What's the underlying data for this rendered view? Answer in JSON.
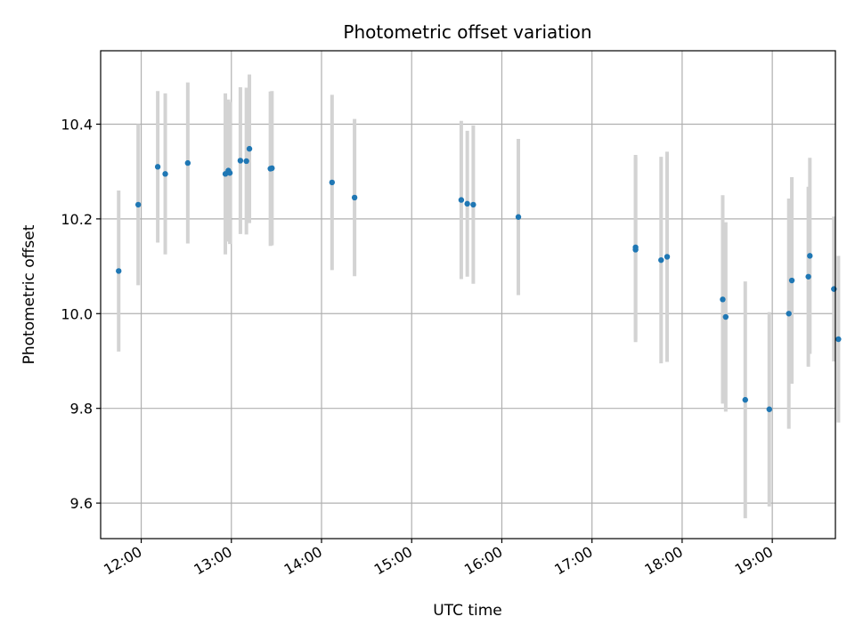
{
  "chart_data": {
    "type": "scatter",
    "title": "Photometric offset variation",
    "xlabel": "UTC time",
    "ylabel": "Photometric offset",
    "x_axis_kind": "time-of-day",
    "xlim": [
      "11:33",
      "19:42"
    ],
    "ylim": [
      9.525,
      10.555
    ],
    "xticks": [
      "12:00",
      "13:00",
      "14:00",
      "15:00",
      "16:00",
      "17:00",
      "18:00",
      "19:00"
    ],
    "yticks": [
      9.6,
      9.8,
      10.0,
      10.2,
      10.4
    ],
    "ytick_labels": [
      "9.6",
      "9.8",
      "10.0",
      "10.2",
      "10.4"
    ],
    "grid": true,
    "legend": "none",
    "colors": {
      "marker": "#1f77b4",
      "errorbar": "#d3d3d3",
      "grid": "#b0b0b0"
    },
    "series": [
      {
        "points": [
          {
            "x": "11:45",
            "y": 10.09,
            "err": 0.17
          },
          {
            "x": "11:58",
            "y": 10.23,
            "err": 0.17
          },
          {
            "x": "12:11",
            "y": 10.31,
            "err": 0.16
          },
          {
            "x": "12:16",
            "y": 10.295,
            "err": 0.17
          },
          {
            "x": "12:31",
            "y": 10.318,
            "err": 0.17
          },
          {
            "x": "12:56",
            "y": 10.295,
            "err": 0.17
          },
          {
            "x": "12:58",
            "y": 10.302,
            "err": 0.15
          },
          {
            "x": "12:59",
            "y": 10.297,
            "err": 0.15
          },
          {
            "x": "13:06",
            "y": 10.323,
            "err": 0.155
          },
          {
            "x": "13:10",
            "y": 10.322,
            "err": 0.155
          },
          {
            "x": "13:12",
            "y": 10.348,
            "err": 0.157
          },
          {
            "x": "13:26",
            "y": 10.306,
            "err": 0.163
          },
          {
            "x": "13:27",
            "y": 10.307,
            "err": 0.163
          },
          {
            "x": "14:07",
            "y": 10.277,
            "err": 0.185
          },
          {
            "x": "14:22",
            "y": 10.245,
            "err": 0.166
          },
          {
            "x": "15:33",
            "y": 10.24,
            "err": 0.167
          },
          {
            "x": "15:37",
            "y": 10.232,
            "err": 0.154
          },
          {
            "x": "15:41",
            "y": 10.23,
            "err": 0.167
          },
          {
            "x": "16:11",
            "y": 10.204,
            "err": 0.165
          },
          {
            "x": "17:29",
            "y": 10.14,
            "err": 0.195
          },
          {
            "x": "17:29",
            "y": 10.135,
            "err": 0.195
          },
          {
            "x": "17:46",
            "y": 10.113,
            "err": 0.218
          },
          {
            "x": "17:50",
            "y": 10.12,
            "err": 0.222
          },
          {
            "x": "18:27",
            "y": 10.03,
            "err": 0.22
          },
          {
            "x": "18:29",
            "y": 9.993,
            "err": 0.2
          },
          {
            "x": "18:42",
            "y": 9.818,
            "err": 0.25
          },
          {
            "x": "18:58",
            "y": 9.798,
            "err": 0.205
          },
          {
            "x": "19:11",
            "y": 10.0,
            "err": 0.243
          },
          {
            "x": "19:13",
            "y": 10.07,
            "err": 0.218
          },
          {
            "x": "19:24",
            "y": 10.078,
            "err": 0.19
          },
          {
            "x": "19:25",
            "y": 10.122,
            "err": 0.207
          },
          {
            "x": "19:41",
            "y": 10.052,
            "err": 0.153
          },
          {
            "x": "19:44",
            "y": 9.946,
            "err": 0.176
          }
        ]
      }
    ]
  }
}
